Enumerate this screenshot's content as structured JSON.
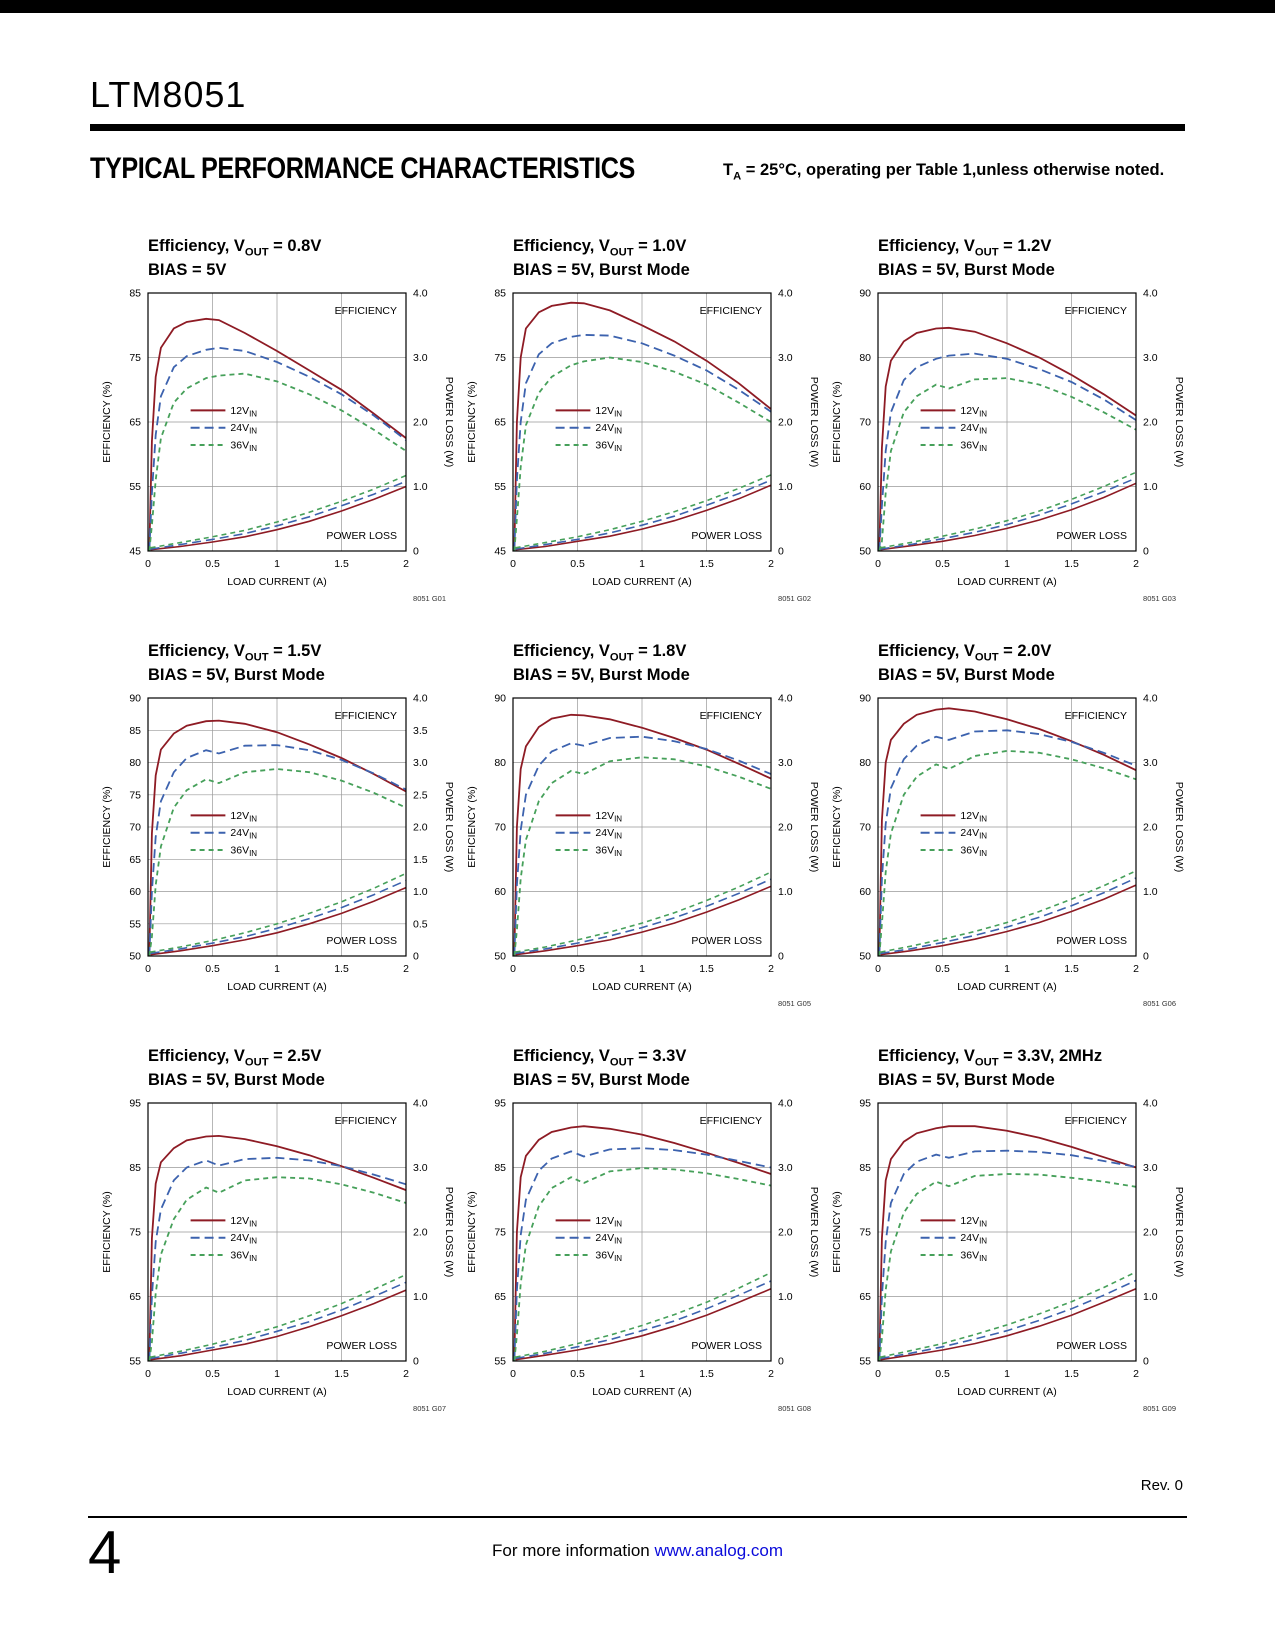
{
  "page": {
    "part_number": "LTM8051",
    "section_title": "TYPICAL PERFORMANCE CHARACTERISTICS",
    "condition_note": {
      "pre": "T",
      "sub": "A",
      "post": " = 25°C, operating per Table 1,unless otherwise noted."
    },
    "revision": "Rev. 0",
    "page_number": "4",
    "footer": {
      "pre": "For more information ",
      "link": "www.analog.com"
    }
  },
  "palette": {
    "v12": "#8e1b24",
    "v24": "#3c62ae",
    "v36": "#46a05a",
    "grid": "#999999",
    "axis": "#000000",
    "link_blue": "#0a0adb"
  },
  "chart_common": {
    "xlabel": "LOAD CURRENT (A)",
    "ylabel_left": "EFFICIENCY (%)",
    "ylabel_right": "POWER LOSS (W)",
    "efficiency_label": "EFFICIENCY",
    "power_loss_label": "POWER LOSS",
    "xlim": [
      0,
      2
    ],
    "xticks": [
      0,
      0.5,
      1,
      1.5,
      2
    ],
    "right_ylim": [
      0,
      4
    ],
    "grid_on": true,
    "legend_position": "center-left",
    "legend": [
      {
        "pre": "12V",
        "sub": "IN",
        "series": "v12",
        "style": "solid"
      },
      {
        "pre": "24V",
        "sub": "IN",
        "series": "v24",
        "style": "long-dash"
      },
      {
        "pre": "36V",
        "sub": "IN",
        "series": "v36",
        "style": "short-dash"
      }
    ],
    "x_eff": [
      0.01,
      0.03,
      0.06,
      0.1,
      0.2,
      0.3,
      0.45,
      0.55,
      0.75,
      1.0,
      1.25,
      1.5,
      1.75,
      2.0
    ],
    "x_loss": [
      0.02,
      0.25,
      0.5,
      0.75,
      1.0,
      1.25,
      1.5,
      1.75,
      2.0
    ]
  },
  "chart_data": [
    {
      "type": "line",
      "title": {
        "pre": "Efficiency, V",
        "sub": "OUT",
        "post": " = 0.8V"
      },
      "subtitle": "BIAS = 5V",
      "graph_id": "8051 G01",
      "left_ylim": [
        45,
        85
      ],
      "left_yticks": [
        45,
        55,
        65,
        75,
        85
      ],
      "right_yticks": [
        "0",
        "1.0",
        "2.0",
        "3.0",
        "4.0"
      ],
      "efficiency": {
        "v12": [
          45,
          62,
          72,
          76.5,
          79.5,
          80.5,
          81,
          80.8,
          78.8,
          76,
          73,
          70,
          66.3,
          62.5
        ],
        "v24": [
          45,
          54,
          63,
          69,
          73.5,
          75.2,
          76.2,
          76.5,
          76,
          74.3,
          72,
          69.3,
          66,
          62.2
        ],
        "v36": [
          45,
          49,
          56,
          62.5,
          68,
          70.2,
          71.8,
          72.2,
          72.5,
          71.3,
          69.3,
          66.8,
          63.8,
          60.5
        ]
      },
      "power_loss": {
        "v12": [
          0.02,
          0.07,
          0.14,
          0.22,
          0.33,
          0.46,
          0.62,
          0.8,
          1.0
        ],
        "v24": [
          0.03,
          0.1,
          0.18,
          0.27,
          0.39,
          0.53,
          0.7,
          0.88,
          1.08
        ],
        "v36": [
          0.05,
          0.13,
          0.22,
          0.32,
          0.45,
          0.6,
          0.77,
          0.96,
          1.17
        ]
      }
    },
    {
      "type": "line",
      "title": {
        "pre": "Efficiency, V",
        "sub": "OUT",
        "post": " = 1.0V"
      },
      "subtitle": "BIAS = 5V, Burst Mode",
      "graph_id": "8051 G02",
      "left_ylim": [
        45,
        85
      ],
      "left_yticks": [
        45,
        55,
        65,
        75,
        85
      ],
      "right_yticks": [
        "0",
        "1.0",
        "2.0",
        "3.0",
        "4.0"
      ],
      "efficiency": {
        "v12": [
          45,
          65,
          75,
          79.5,
          82,
          83,
          83.5,
          83.4,
          82.3,
          80,
          77.5,
          74.5,
          71,
          67
        ],
        "v24": [
          45,
          56,
          65,
          71,
          75.5,
          77.2,
          78.2,
          78.5,
          78.4,
          77.2,
          75.3,
          73,
          70,
          66.6
        ],
        "v36": [
          45,
          50,
          58,
          64.5,
          69.5,
          72,
          73.8,
          74.4,
          75,
          74.3,
          72.8,
          70.8,
          68,
          65
        ]
      },
      "power_loss": {
        "v12": [
          0.02,
          0.07,
          0.15,
          0.23,
          0.34,
          0.47,
          0.63,
          0.81,
          1.02
        ],
        "v24": [
          0.03,
          0.1,
          0.18,
          0.28,
          0.4,
          0.54,
          0.71,
          0.89,
          1.1
        ],
        "v36": [
          0.05,
          0.13,
          0.22,
          0.33,
          0.46,
          0.61,
          0.78,
          0.97,
          1.18
        ]
      }
    },
    {
      "type": "line",
      "title": {
        "pre": "Efficiency, V",
        "sub": "OUT",
        "post": " = 1.2V"
      },
      "subtitle": "BIAS = 5V, Burst Mode",
      "graph_id": "8051 G03",
      "left_ylim": [
        50,
        90
      ],
      "left_yticks": [
        50,
        60,
        70,
        80,
        90
      ],
      "right_yticks": [
        "0",
        "1.0",
        "2.0",
        "3.0",
        "4.0"
      ],
      "efficiency": {
        "v12": [
          50,
          66,
          75.5,
          79.5,
          82.5,
          83.8,
          84.5,
          84.6,
          84,
          82.2,
          80,
          77.3,
          74.3,
          71
        ],
        "v24": [
          50,
          57,
          65.5,
          71.5,
          76.5,
          78.5,
          79.8,
          80.3,
          80.6,
          79.8,
          78.2,
          76.2,
          73.5,
          70.3
        ],
        "v36": [
          50,
          51.5,
          59,
          65.5,
          71.5,
          74,
          75.8,
          75.2,
          76.6,
          76.8,
          75.8,
          73.9,
          71.5,
          68.8
        ]
      },
      "power_loss": {
        "v12": [
          0.02,
          0.08,
          0.15,
          0.24,
          0.35,
          0.48,
          0.64,
          0.83,
          1.05
        ],
        "v24": [
          0.03,
          0.1,
          0.19,
          0.29,
          0.41,
          0.56,
          0.73,
          0.92,
          1.13
        ],
        "v36": [
          0.05,
          0.13,
          0.23,
          0.34,
          0.47,
          0.62,
          0.8,
          1.0,
          1.22
        ]
      }
    },
    {
      "type": "line",
      "title": {
        "pre": "Efficiency, V",
        "sub": "OUT",
        "post": " = 1.5V"
      },
      "subtitle": "BIAS = 5V, Burst Mode",
      "graph_id": "",
      "left_ylim": [
        50,
        90
      ],
      "left_yticks": [
        50,
        55,
        60,
        65,
        70,
        75,
        80,
        85,
        90
      ],
      "right_yticks": [
        "0",
        "0.5",
        "1.0",
        "1.5",
        "2.0",
        "2.5",
        "3.0",
        "3.5",
        "4.0"
      ],
      "efficiency": {
        "v12": [
          50,
          69,
          78,
          82,
          84.5,
          85.7,
          86.4,
          86.5,
          86,
          84.7,
          82.8,
          80.7,
          78.2,
          75.5
        ],
        "v24": [
          50,
          60,
          68.5,
          74,
          78.5,
          80.7,
          81.9,
          81.4,
          82.6,
          82.7,
          81.9,
          80.4,
          78.3,
          75.8
        ],
        "v36": [
          50,
          53,
          61,
          67,
          73,
          75.7,
          77.4,
          76.8,
          78.5,
          79,
          78.5,
          77.2,
          75.3,
          73
        ]
      },
      "power_loss": {
        "v12": [
          0.02,
          0.08,
          0.16,
          0.25,
          0.36,
          0.5,
          0.66,
          0.85,
          1.06
        ],
        "v24": [
          0.04,
          0.11,
          0.2,
          0.3,
          0.43,
          0.58,
          0.75,
          0.95,
          1.17
        ],
        "v36": [
          0.06,
          0.14,
          0.24,
          0.36,
          0.5,
          0.66,
          0.84,
          1.05,
          1.28
        ]
      }
    },
    {
      "type": "line",
      "title": {
        "pre": "Efficiency, V",
        "sub": "OUT",
        "post": " = 1.8V"
      },
      "subtitle": "BIAS = 5V, Burst Mode",
      "graph_id": "8051 G05",
      "left_ylim": [
        50,
        90
      ],
      "left_yticks": [
        50,
        60,
        70,
        80,
        90
      ],
      "right_yticks": [
        "0",
        "1.0",
        "2.0",
        "3.0",
        "4.0"
      ],
      "efficiency": {
        "v12": [
          50,
          70,
          79,
          82.5,
          85.5,
          86.8,
          87.4,
          87.3,
          86.7,
          85.4,
          83.8,
          82,
          79.8,
          77.5
        ],
        "v24": [
          50,
          61,
          69.5,
          75,
          79.5,
          81.7,
          83,
          82.6,
          83.8,
          84,
          83.3,
          82.1,
          80.3,
          78.2
        ],
        "v36": [
          50,
          54,
          62,
          68,
          74,
          76.8,
          78.7,
          78.2,
          80.2,
          80.8,
          80.5,
          79.4,
          77.8,
          75.9
        ]
      },
      "power_loss": {
        "v12": [
          0.02,
          0.08,
          0.16,
          0.25,
          0.37,
          0.51,
          0.68,
          0.87,
          1.08
        ],
        "v24": [
          0.04,
          0.11,
          0.2,
          0.31,
          0.44,
          0.59,
          0.77,
          0.97,
          1.19
        ],
        "v36": [
          0.06,
          0.14,
          0.25,
          0.37,
          0.51,
          0.67,
          0.86,
          1.07,
          1.3
        ]
      }
    },
    {
      "type": "line",
      "title": {
        "pre": "Efficiency, V",
        "sub": "OUT",
        "post": " = 2.0V"
      },
      "subtitle": "BIAS = 5V, Burst Mode",
      "graph_id": "8051 G06",
      "left_ylim": [
        50,
        90
      ],
      "left_yticks": [
        50,
        60,
        70,
        80,
        90
      ],
      "right_yticks": [
        "0",
        "1.0",
        "2.0",
        "3.0",
        "4.0"
      ],
      "efficiency": {
        "v12": [
          50,
          71,
          80,
          83.5,
          86,
          87.4,
          88.2,
          88.4,
          87.9,
          86.7,
          85.2,
          83.3,
          81.2,
          78.8
        ],
        "v24": [
          50,
          62,
          70.5,
          76,
          80.5,
          82.6,
          84,
          83.5,
          84.8,
          85,
          84.4,
          83.2,
          81.5,
          79.5
        ],
        "v36": [
          50,
          55,
          63,
          69,
          75,
          77.8,
          79.7,
          79,
          81,
          81.8,
          81.5,
          80.5,
          79.1,
          77.4
        ]
      },
      "power_loss": {
        "v12": [
          0.02,
          0.08,
          0.16,
          0.26,
          0.38,
          0.52,
          0.69,
          0.88,
          1.1
        ],
        "v24": [
          0.04,
          0.11,
          0.21,
          0.32,
          0.45,
          0.6,
          0.78,
          0.98,
          1.21
        ],
        "v36": [
          0.06,
          0.15,
          0.26,
          0.38,
          0.52,
          0.69,
          0.88,
          1.09,
          1.32
        ]
      }
    },
    {
      "type": "line",
      "title": {
        "pre": "Efficiency, V",
        "sub": "OUT",
        "post": " = 2.5V"
      },
      "subtitle": "BIAS = 5V, Burst Mode",
      "graph_id": "8051 G07",
      "left_ylim": [
        55,
        95
      ],
      "left_yticks": [
        55,
        65,
        75,
        85,
        95
      ],
      "right_yticks": [
        "0",
        "1.0",
        "2.0",
        "3.0",
        "4.0"
      ],
      "efficiency": {
        "v12": [
          55,
          74,
          82.5,
          85.8,
          88,
          89.2,
          89.8,
          89.9,
          89.4,
          88.3,
          86.9,
          85.2,
          83.4,
          81.5
        ],
        "v24": [
          55,
          65,
          73.5,
          78.5,
          83,
          85,
          86.1,
          85.3,
          86.3,
          86.5,
          86.1,
          85.2,
          83.9,
          82.4
        ],
        "v36": [
          55,
          58,
          65.5,
          71.5,
          77,
          80,
          81.9,
          81.1,
          83,
          83.5,
          83.3,
          82.4,
          81.1,
          79.5
        ]
      },
      "power_loss": {
        "v12": [
          0.02,
          0.08,
          0.17,
          0.26,
          0.38,
          0.53,
          0.7,
          0.89,
          1.1
        ],
        "v24": [
          0.04,
          0.12,
          0.21,
          0.32,
          0.46,
          0.61,
          0.79,
          1.0,
          1.22
        ],
        "v36": [
          0.06,
          0.15,
          0.26,
          0.39,
          0.53,
          0.7,
          0.89,
          1.11,
          1.34
        ]
      }
    },
    {
      "type": "line",
      "title": {
        "pre": "Efficiency, V",
        "sub": "OUT",
        "post": " = 3.3V"
      },
      "subtitle": "BIAS = 5V, Burst Mode",
      "graph_id": "8051 G08",
      "left_ylim": [
        55,
        95
      ],
      "left_yticks": [
        55,
        65,
        75,
        85,
        95
      ],
      "right_yticks": [
        "0",
        "1.0",
        "2.0",
        "3.0",
        "4.0"
      ],
      "efficiency": {
        "v12": [
          55,
          75,
          83.5,
          86.8,
          89.3,
          90.5,
          91.2,
          91.4,
          91,
          90.1,
          88.8,
          87.3,
          85.7,
          84
        ],
        "v24": [
          55,
          66,
          74.5,
          80,
          84.5,
          86.4,
          87.5,
          86.7,
          87.8,
          88,
          87.7,
          87,
          86,
          85
        ],
        "v36": [
          55,
          59,
          67,
          73,
          79,
          81.8,
          83.5,
          82.6,
          84.4,
          84.9,
          84.7,
          84.1,
          83.2,
          82.2
        ]
      },
      "power_loss": {
        "v12": [
          0.02,
          0.09,
          0.17,
          0.27,
          0.39,
          0.54,
          0.71,
          0.91,
          1.12
        ],
        "v24": [
          0.04,
          0.12,
          0.22,
          0.33,
          0.47,
          0.62,
          0.81,
          1.02,
          1.24
        ],
        "v36": [
          0.06,
          0.15,
          0.27,
          0.4,
          0.55,
          0.72,
          0.91,
          1.13,
          1.37
        ]
      }
    },
    {
      "type": "line",
      "title": {
        "pre": "Efficiency, V",
        "sub": "OUT",
        "post": " = 3.3V, 2MHz"
      },
      "subtitle": "BIAS = 5V, Burst Mode",
      "graph_id": "8051 G09",
      "left_ylim": [
        55,
        95
      ],
      "left_yticks": [
        55,
        65,
        75,
        85,
        95
      ],
      "right_yticks": [
        "0",
        "1.0",
        "2.0",
        "3.0",
        "4.0"
      ],
      "efficiency": {
        "v12": [
          55,
          74,
          83,
          86.3,
          89,
          90.3,
          91.1,
          91.4,
          91.4,
          90.7,
          89.6,
          88.2,
          86.6,
          85
        ],
        "v24": [
          55,
          65,
          73.5,
          79.5,
          84,
          85.9,
          87,
          86.5,
          87.5,
          87.6,
          87.4,
          86.9,
          86,
          85.1
        ],
        "v36": [
          55,
          58.5,
          66,
          72,
          78,
          80.9,
          82.8,
          82.1,
          83.7,
          84,
          83.9,
          83.4,
          82.8,
          82
        ]
      },
      "power_loss": {
        "v12": [
          0.02,
          0.09,
          0.17,
          0.27,
          0.39,
          0.54,
          0.71,
          0.91,
          1.12
        ],
        "v24": [
          0.04,
          0.12,
          0.22,
          0.34,
          0.47,
          0.63,
          0.81,
          1.02,
          1.25
        ],
        "v36": [
          0.06,
          0.16,
          0.27,
          0.41,
          0.56,
          0.73,
          0.92,
          1.14,
          1.38
        ]
      }
    }
  ]
}
